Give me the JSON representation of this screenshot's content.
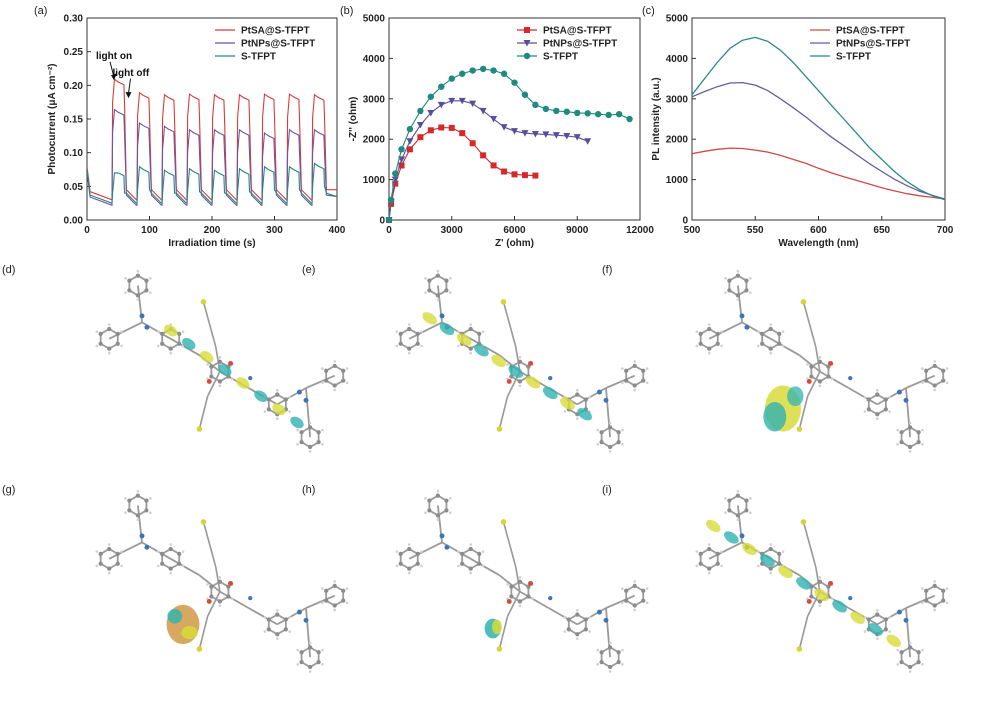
{
  "chart_data": [
    {
      "panel": "(a)",
      "type": "line",
      "xlabel": "Irradiation time (s)",
      "ylabel": "Photocurrent (μA cm⁻²)",
      "xlim": [
        0,
        400
      ],
      "ylim": [
        0,
        0.3
      ],
      "xticks": [
        0,
        100,
        200,
        300,
        400
      ],
      "yticks": [
        0.0,
        0.05,
        0.1,
        0.15,
        0.2,
        0.25,
        0.3
      ],
      "legend_position": "top-right",
      "light_on_times": [
        40,
        80,
        120,
        160,
        200,
        240,
        280,
        320,
        360
      ],
      "light_off_times": [
        60,
        100,
        140,
        180,
        220,
        260,
        300,
        340,
        380
      ],
      "annotations": [
        {
          "text": "light on",
          "x": 40,
          "y": 0.205
        },
        {
          "text": "light off",
          "x": 60,
          "y": 0.19
        }
      ],
      "series": [
        {
          "name": "PtSA@S-TFPT",
          "color": "#d93c3c",
          "dark": 0.03,
          "dark_final": 0.045,
          "on": [
            0.205,
            0.185,
            0.182,
            0.183,
            0.182,
            0.182,
            0.183,
            0.183,
            0.182
          ]
        },
        {
          "name": "PtNPs@S-TFPT",
          "color": "#6a56a4",
          "dark": 0.022,
          "dark_final": 0.035,
          "on": [
            0.16,
            0.14,
            0.135,
            0.13,
            0.13,
            0.13,
            0.125,
            0.13,
            0.13
          ]
        },
        {
          "name": "S-TFPT",
          "color": "#26877a",
          "dark": 0.025,
          "dark_final": 0.035,
          "on": [
            0.07,
            0.075,
            0.07,
            0.072,
            0.07,
            0.072,
            0.075,
            0.075,
            0.08
          ]
        }
      ]
    },
    {
      "panel": "(b)",
      "type": "scatter",
      "xlabel": "Z' (ohm)",
      "ylabel": "-Z'' (ohm)",
      "xlim": [
        0,
        12000
      ],
      "ylim": [
        0,
        5000
      ],
      "xticks": [
        0,
        3000,
        6000,
        9000,
        12000
      ],
      "yticks": [
        0,
        1000,
        2000,
        3000,
        4000,
        5000
      ],
      "legend_position": "top-right",
      "series": [
        {
          "name": "PtSA@S-TFPT",
          "color": "#d42a2a",
          "marker": "square",
          "x": [
            0,
            100,
            300,
            600,
            1000,
            1500,
            2000,
            2500,
            3000,
            3500,
            4000,
            4500,
            5000,
            5500,
            6000,
            6500,
            7000
          ],
          "y": [
            0,
            400,
            900,
            1350,
            1750,
            2050,
            2220,
            2290,
            2280,
            2150,
            1900,
            1600,
            1350,
            1200,
            1130,
            1110,
            1100
          ]
        },
        {
          "name": "PtNPs@S-TFPT",
          "color": "#5a4d9e",
          "marker": "triangle-down",
          "x": [
            0,
            100,
            300,
            600,
            1000,
            1500,
            2000,
            2500,
            3000,
            3500,
            4000,
            4500,
            5000,
            5500,
            6000,
            6500,
            7000,
            7500,
            8000,
            8500,
            9000,
            9500
          ],
          "y": [
            0,
            450,
            1000,
            1500,
            1950,
            2350,
            2650,
            2850,
            2950,
            2950,
            2880,
            2700,
            2500,
            2300,
            2200,
            2150,
            2130,
            2120,
            2100,
            2080,
            2050,
            1950
          ]
        },
        {
          "name": "S-TFPT",
          "color": "#1f8a80",
          "marker": "circle",
          "x": [
            0,
            100,
            300,
            600,
            1000,
            1500,
            2000,
            2500,
            3000,
            3500,
            4000,
            4500,
            5000,
            5500,
            6000,
            6500,
            7000,
            7500,
            8000,
            8500,
            9000,
            9500,
            10000,
            10500,
            11000,
            11500
          ],
          "y": [
            0,
            500,
            1150,
            1750,
            2250,
            2700,
            3050,
            3300,
            3500,
            3620,
            3700,
            3740,
            3700,
            3620,
            3400,
            3100,
            2850,
            2750,
            2700,
            2680,
            2650,
            2640,
            2620,
            2600,
            2620,
            2500
          ]
        }
      ]
    },
    {
      "panel": "(c)",
      "type": "line",
      "xlabel": "Wavelength (nm)",
      "ylabel": "PL intensity (a.u.)",
      "xlim": [
        500,
        700
      ],
      "ylim": [
        0,
        5000
      ],
      "xticks": [
        500,
        550,
        600,
        650,
        700
      ],
      "yticks": [
        0,
        1000,
        2000,
        3000,
        4000,
        5000
      ],
      "legend_position": "top-right",
      "series": [
        {
          "name": "PtSA@S-TFPT",
          "color": "#cf4a4a",
          "x": [
            500,
            510,
            520,
            530,
            540,
            550,
            560,
            570,
            580,
            590,
            600,
            610,
            620,
            630,
            640,
            650,
            660,
            670,
            680,
            690,
            700
          ],
          "y": [
            1640,
            1700,
            1750,
            1780,
            1770,
            1730,
            1680,
            1600,
            1500,
            1400,
            1280,
            1170,
            1070,
            980,
            890,
            800,
            720,
            650,
            600,
            560,
            520
          ]
        },
        {
          "name": "PtNPs@S-TFPT",
          "color": "#6b5aa6",
          "x": [
            500,
            510,
            520,
            530,
            540,
            550,
            560,
            570,
            580,
            590,
            600,
            610,
            620,
            630,
            640,
            650,
            660,
            670,
            680,
            690,
            700
          ],
          "y": [
            3050,
            3180,
            3300,
            3390,
            3400,
            3340,
            3200,
            3000,
            2780,
            2550,
            2300,
            2060,
            1840,
            1620,
            1400,
            1200,
            1010,
            850,
            710,
            610,
            520
          ]
        },
        {
          "name": "S-TFPT",
          "color": "#2a8b82",
          "x": [
            500,
            510,
            520,
            530,
            540,
            550,
            560,
            570,
            580,
            590,
            600,
            610,
            620,
            630,
            640,
            650,
            660,
            670,
            680,
            690,
            700
          ],
          "y": [
            3100,
            3500,
            3900,
            4250,
            4450,
            4520,
            4420,
            4200,
            3900,
            3550,
            3200,
            2850,
            2500,
            2150,
            1800,
            1500,
            1200,
            950,
            750,
            600,
            500
          ]
        }
      ]
    }
  ],
  "structure_panels": [
    "(d)",
    "(e)",
    "(f)",
    "(g)",
    "(h)",
    "(i)"
  ],
  "orbital_colors": {
    "positive": "#d8dc3a",
    "negative": "#2fb3b0",
    "carbon": "#9a9a9a",
    "nitrogen": "#3c76b8",
    "oxygen": "#d84a3a",
    "sulfur": "#d9d33a",
    "platinum": "#c98b2e"
  }
}
